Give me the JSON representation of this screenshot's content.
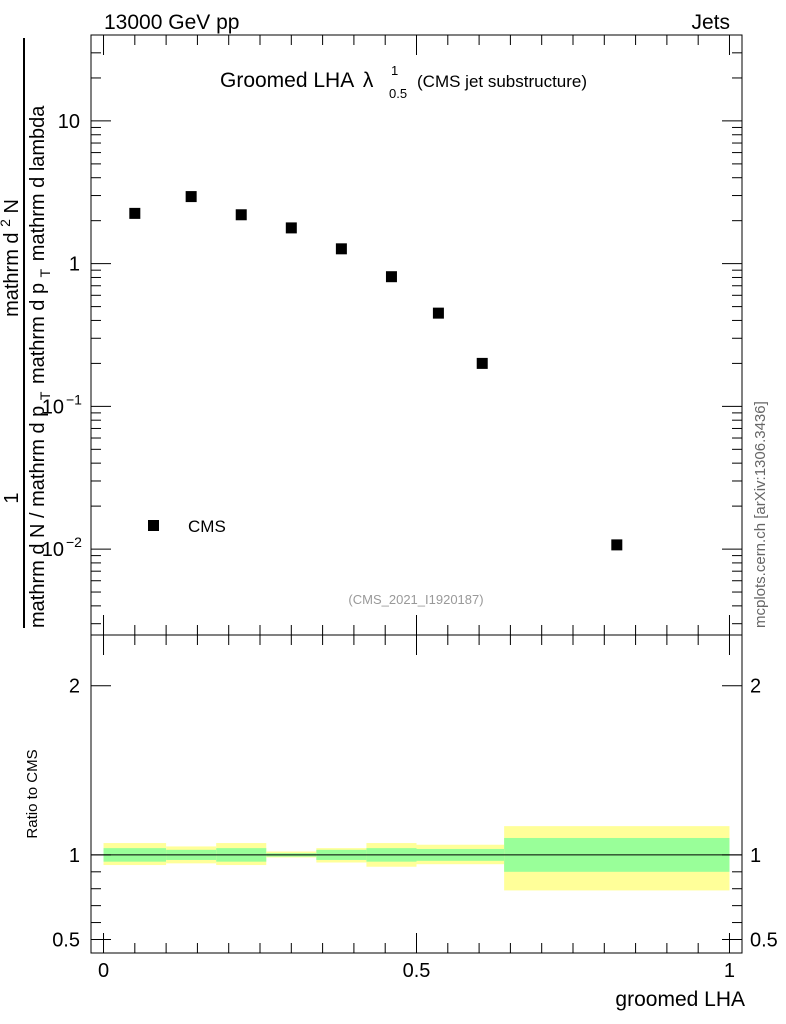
{
  "header": {
    "left": "13000 GeV pp",
    "right": "Jets"
  },
  "side_label": "mcplots.cern.ch [arXiv:1306.3436]",
  "chart_data": [
    {
      "type": "scatter",
      "title_main": "Groomed LHA",
      "title_symbol": "λ",
      "title_sup": "1",
      "title_sub": "0.5",
      "title_suffix": "(CMS jet substructure)",
      "analysis_id": "(CMS_2021_I1920187)",
      "ylabel_parts": {
        "numerator": "1",
        "denominator_a": "mathrm d N / mathrm d p",
        "denominator_a_sub": "T",
        "denominator_b": "mathrm d",
        "denominator_b_sup": "2",
        "denominator_b_rest": "N",
        "denominator_c": "mathrm d p",
        "denominator_c_sub": "T",
        "denominator_c_rest": "mathrm d lambda",
        "frac_numer": "mathrm d"
      },
      "yscale": "log",
      "ylim": [
        0.0025,
        40
      ],
      "xlim": [
        -0.02,
        1.02
      ],
      "yticks": [
        {
          "value": 10,
          "label": "10",
          "exp": ""
        },
        {
          "value": 1,
          "label": "1",
          "exp": ""
        },
        {
          "value": 0.1,
          "label": "10",
          "exp": "−1"
        },
        {
          "value": 0.01,
          "label": "10",
          "exp": "−2"
        }
      ],
      "series": [
        {
          "name": "CMS",
          "marker": "square",
          "x": [
            0.05,
            0.14,
            0.22,
            0.3,
            0.38,
            0.46,
            0.535,
            0.605,
            0.82
          ],
          "y": [
            2.25,
            2.95,
            2.2,
            1.78,
            1.27,
            0.81,
            0.45,
            0.2,
            0.0107
          ]
        }
      ],
      "legend": {
        "position": "bottom-left",
        "label": "CMS"
      }
    },
    {
      "type": "area",
      "ylabel": "Ratio to CMS",
      "xlabel": "groomed LHA",
      "ylim": [
        0.42,
        2.3
      ],
      "xlim": [
        -0.02,
        1.02
      ],
      "xticks": [
        {
          "value": 0,
          "label": "0"
        },
        {
          "value": 0.5,
          "label": "0.5"
        },
        {
          "value": 1,
          "label": "1"
        }
      ],
      "yticks": [
        {
          "value": 0.5,
          "label": "0.5"
        },
        {
          "value": 1,
          "label": "1"
        },
        {
          "value": 2,
          "label": "2"
        }
      ],
      "reference_line": 1,
      "bands": {
        "bin_edges": [
          0,
          0.1,
          0.18,
          0.26,
          0.34,
          0.42,
          0.5,
          0.64,
          1.0
        ],
        "inner_low": [
          0.96,
          0.97,
          0.96,
          0.99,
          0.97,
          0.96,
          0.965,
          0.9
        ],
        "inner_high": [
          1.04,
          1.03,
          1.04,
          1.01,
          1.03,
          1.04,
          1.035,
          1.1
        ],
        "outer_low": [
          0.94,
          0.95,
          0.94,
          0.985,
          0.955,
          0.93,
          0.945,
          0.79
        ],
        "outer_high": [
          1.07,
          1.05,
          1.07,
          1.02,
          1.04,
          1.07,
          1.06,
          1.17
        ]
      },
      "colors": {
        "inner_band": "#99ff99",
        "outer_band": "#ffff99"
      }
    }
  ]
}
